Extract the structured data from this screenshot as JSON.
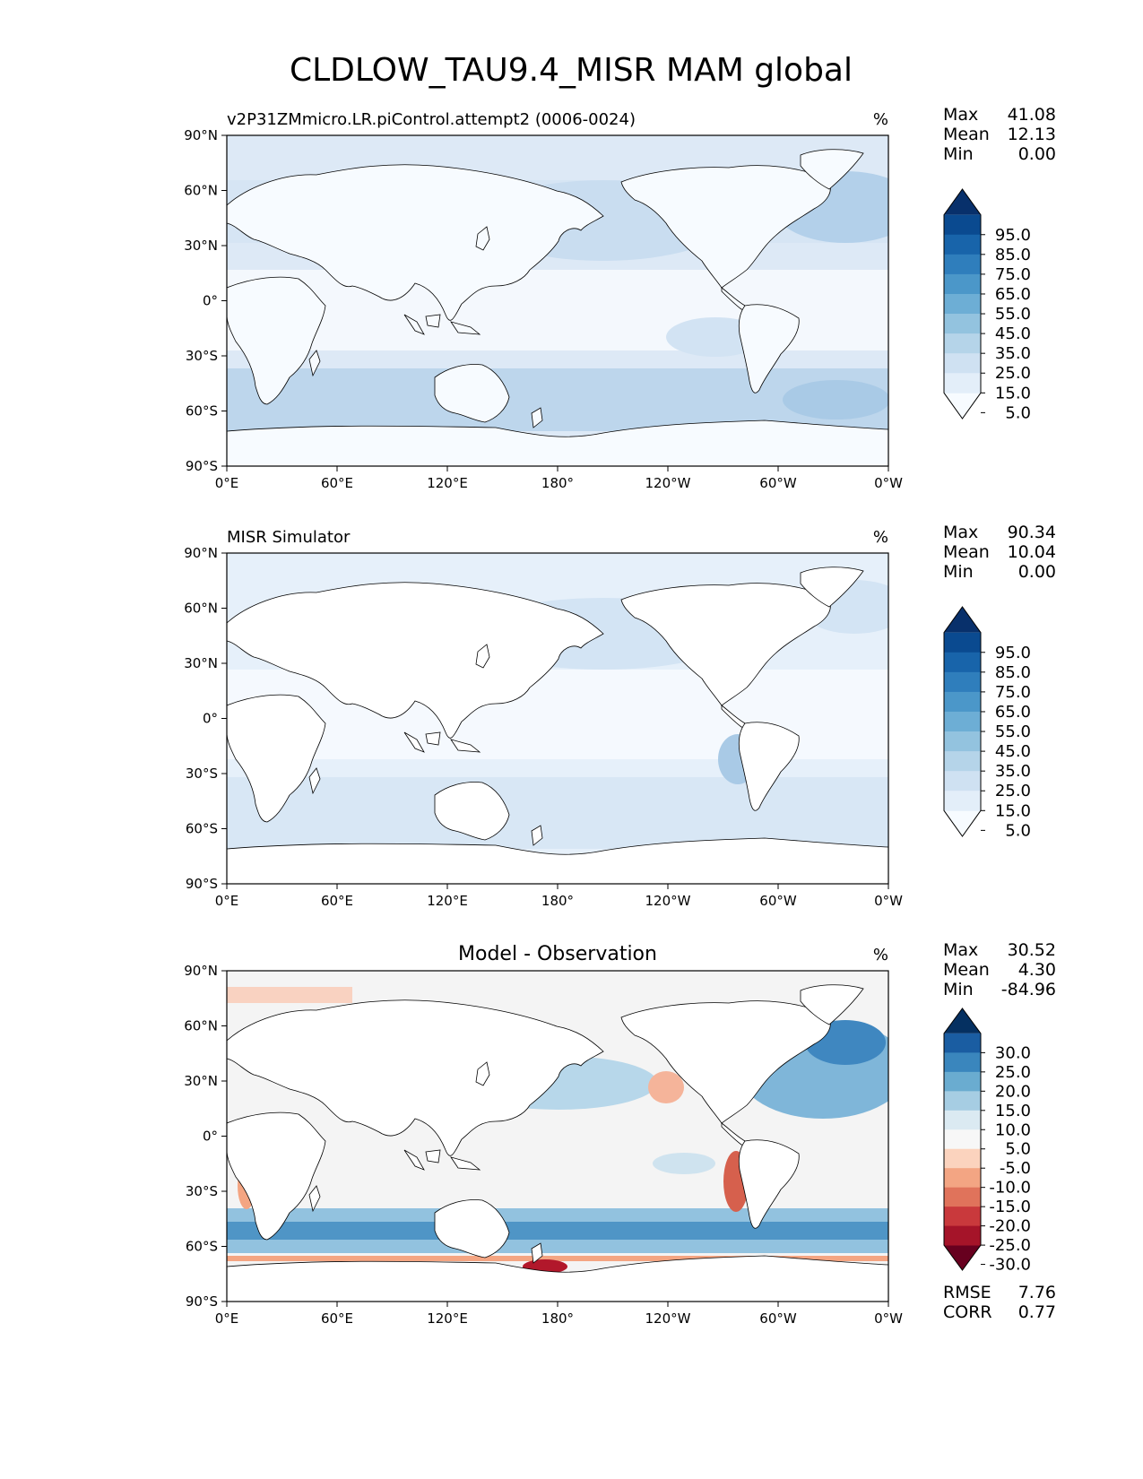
{
  "title": "CLDLOW_TAU9.4_MISR MAM global",
  "chart_data": [
    {
      "type": "heatmap",
      "panel": "model",
      "left_title": "v2P31ZMmicro.LR.piControl.attempt2 (0006-0024)",
      "center_title": "",
      "units": "%",
      "stats": [
        {
          "label": "Max",
          "value": "41.08"
        },
        {
          "label": "Mean",
          "value": "12.13"
        },
        {
          "label": "Min",
          "value": "0.00"
        }
      ],
      "colorbar_levels": [
        "95.0",
        "85.0",
        "75.0",
        "65.0",
        "55.0",
        "45.0",
        "35.0",
        "25.0",
        "15.0",
        "5.0"
      ],
      "colorbar_colors": [
        "#f7fbff",
        "#e3eef9",
        "#cfe1f2",
        "#b5d4e9",
        "#93c3df",
        "#6daed5",
        "#4b97c9",
        "#2f7ebc",
        "#1864aa",
        "#0a4a90",
        "#08306b"
      ],
      "xticks": [
        "0°E",
        "60°E",
        "120°E",
        "180°",
        "120°W",
        "60°W",
        "0°W"
      ],
      "yticks": [
        "90°N",
        "60°N",
        "30°N",
        "0°",
        "30°S",
        "60°S",
        "90°S"
      ],
      "xlim": [
        0,
        360
      ],
      "ylim": [
        -90,
        90
      ]
    },
    {
      "type": "heatmap",
      "panel": "observation",
      "left_title": "MISR Simulator",
      "center_title": "",
      "units": "%",
      "stats": [
        {
          "label": "Max",
          "value": "90.34"
        },
        {
          "label": "Mean",
          "value": "10.04"
        },
        {
          "label": "Min",
          "value": "0.00"
        }
      ],
      "colorbar_levels": [
        "95.0",
        "85.0",
        "75.0",
        "65.0",
        "55.0",
        "45.0",
        "35.0",
        "25.0",
        "15.0",
        "5.0"
      ],
      "colorbar_colors": [
        "#f7fbff",
        "#e3eef9",
        "#cfe1f2",
        "#b5d4e9",
        "#93c3df",
        "#6daed5",
        "#4b97c9",
        "#2f7ebc",
        "#1864aa",
        "#0a4a90",
        "#08306b"
      ],
      "xticks": [
        "0°E",
        "60°E",
        "120°E",
        "180°",
        "120°W",
        "60°W",
        "0°W"
      ],
      "yticks": [
        "90°N",
        "60°N",
        "30°N",
        "0°",
        "30°S",
        "60°S",
        "90°S"
      ],
      "xlim": [
        0,
        360
      ],
      "ylim": [
        -90,
        90
      ]
    },
    {
      "type": "heatmap",
      "panel": "difference",
      "left_title": "",
      "center_title": "Model - Observation",
      "units": "%",
      "stats": [
        {
          "label": "Max",
          "value": "30.52"
        },
        {
          "label": "Mean",
          "value": "4.30"
        },
        {
          "label": "Min",
          "value": "-84.96"
        }
      ],
      "bottom_stats": [
        {
          "label": "RMSE",
          "value": "7.76"
        },
        {
          "label": "CORR",
          "value": "0.77"
        }
      ],
      "colorbar_levels": [
        "30.0",
        "25.0",
        "20.0",
        "15.0",
        "10.0",
        "5.0",
        "-5.0",
        "-10.0",
        "-15.0",
        "-20.0",
        "-25.0",
        "-30.0"
      ],
      "colorbar_colors": [
        "#67001f",
        "#a51429",
        "#c9393c",
        "#e0735b",
        "#f3a583",
        "#fbd3be",
        "#f7f7f7",
        "#dbeaf2",
        "#a6cde3",
        "#6aacd0",
        "#3a86bd",
        "#1a5da2",
        "#053061"
      ],
      "xticks": [
        "0°E",
        "60°E",
        "120°E",
        "180°",
        "120°W",
        "60°W",
        "0°W"
      ],
      "yticks": [
        "90°N",
        "60°N",
        "30°N",
        "0°",
        "30°S",
        "60°S",
        "90°S"
      ],
      "xlim": [
        0,
        360
      ],
      "ylim": [
        -90,
        90
      ]
    }
  ]
}
